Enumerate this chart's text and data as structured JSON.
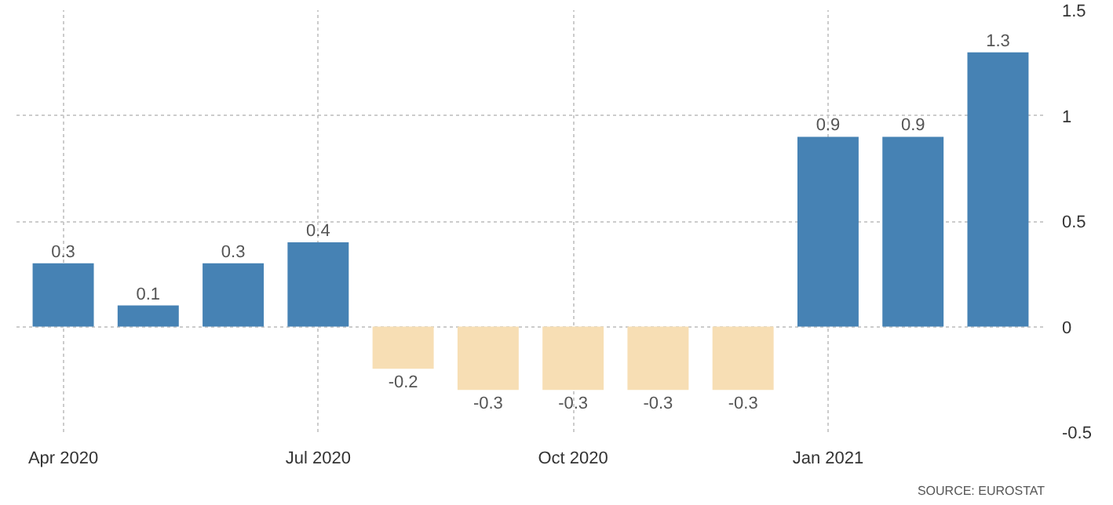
{
  "chart_data": {
    "type": "bar",
    "categories": [
      "Apr 2020",
      null,
      null,
      "Jul 2020",
      null,
      null,
      "Oct 2020",
      null,
      null,
      "Jan 2021",
      null,
      null
    ],
    "values": [
      0.3,
      0.1,
      0.3,
      0.4,
      -0.2,
      -0.3,
      -0.3,
      -0.3,
      -0.3,
      0.9,
      0.9,
      1.3
    ],
    "colors": [
      "#4682b4",
      "#4682b4",
      "#4682b4",
      "#4682b4",
      "#f7deb4",
      "#f7deb4",
      "#f7deb4",
      "#f7deb4",
      "#f7deb4",
      "#4682b4",
      "#4682b4",
      "#4682b4"
    ],
    "ylim": [
      -0.5,
      1.5
    ],
    "yticks": [
      -0.5,
      0,
      0.5,
      1,
      1.5
    ],
    "data_labels": true,
    "grid": true,
    "annotations": [
      "SOURCE: EUROSTAT"
    ]
  }
}
